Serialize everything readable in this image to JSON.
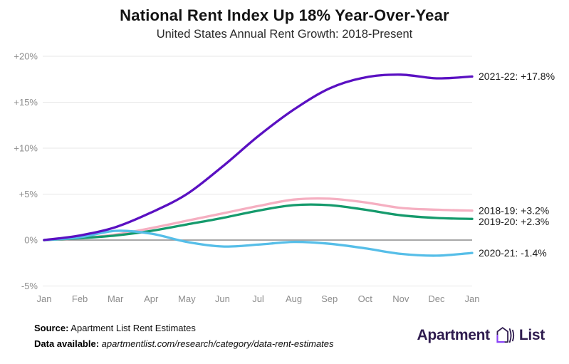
{
  "header": {
    "title": "National Rent Index Up 18% Year-Over-Year",
    "subtitle": "United States Annual Rent Growth: 2018-Present"
  },
  "chart_data": {
    "type": "line",
    "x": [
      "Jan",
      "Feb",
      "Mar",
      "Apr",
      "May",
      "Jun",
      "Jul",
      "Aug",
      "Sep",
      "Oct",
      "Nov",
      "Dec",
      "Jan"
    ],
    "xlabel": "",
    "ylabel": "",
    "ylim": [
      -5,
      20
    ],
    "yticks": [
      {
        "value": 20,
        "label": "+20%"
      },
      {
        "value": 15,
        "label": "+15%"
      },
      {
        "value": 10,
        "label": "+10%"
      },
      {
        "value": 5,
        "label": "+5%"
      },
      {
        "value": 0,
        "label": "0%"
      },
      {
        "value": -5,
        "label": "-5%"
      }
    ],
    "grid": "horizontal-only",
    "legend_position": "right-end-labels",
    "series": [
      {
        "name": "2018-19",
        "end_label": "2018-19: +3.2%",
        "color": "#f5afc1",
        "values": [
          0,
          0.2,
          0.6,
          1.3,
          2.1,
          2.9,
          3.7,
          4.4,
          4.5,
          4.1,
          3.5,
          3.3,
          3.2
        ]
      },
      {
        "name": "2019-20",
        "end_label": "2019-20: +2.3%",
        "color": "#159a6c",
        "values": [
          0,
          0.2,
          0.5,
          1.0,
          1.7,
          2.4,
          3.2,
          3.8,
          3.8,
          3.3,
          2.7,
          2.4,
          2.3
        ]
      },
      {
        "name": "2020-21",
        "end_label": "2020-21: -1.4%",
        "color": "#56bee8",
        "values": [
          0,
          0.3,
          1.0,
          0.7,
          -0.2,
          -0.7,
          -0.5,
          -0.2,
          -0.4,
          -0.9,
          -1.5,
          -1.7,
          -1.4
        ]
      },
      {
        "name": "2021-22",
        "end_label": "2021-22: +17.8%",
        "color": "#5a10c2",
        "values": [
          0,
          0.5,
          1.4,
          3.0,
          5.0,
          8.0,
          11.3,
          14.2,
          16.5,
          17.7,
          18.0,
          17.6,
          17.8
        ]
      }
    ],
    "title": "National Rent Index Up 18% Year-Over-Year",
    "subtitle": "United States Annual Rent Growth: 2018-Present"
  },
  "axis_colors": {
    "gridline": "#e7e7e7",
    "zero_line": "#9c9c9c",
    "tick_text": "#8d8d8d",
    "end_label_text": "#1c1c1c"
  },
  "footer": {
    "source_label": "Source:",
    "source_text": " Apartment List Rent Estimates",
    "data_label": "Data available:",
    "data_text": " apartmentlist.com/research/category/data-rent-estimates"
  },
  "logo": {
    "word1": "Apartment",
    "word2": "List",
    "icon_name": "apartment-list-house-icon",
    "text_color": "#2f1c4f",
    "accent_color": "#8b45f7"
  }
}
